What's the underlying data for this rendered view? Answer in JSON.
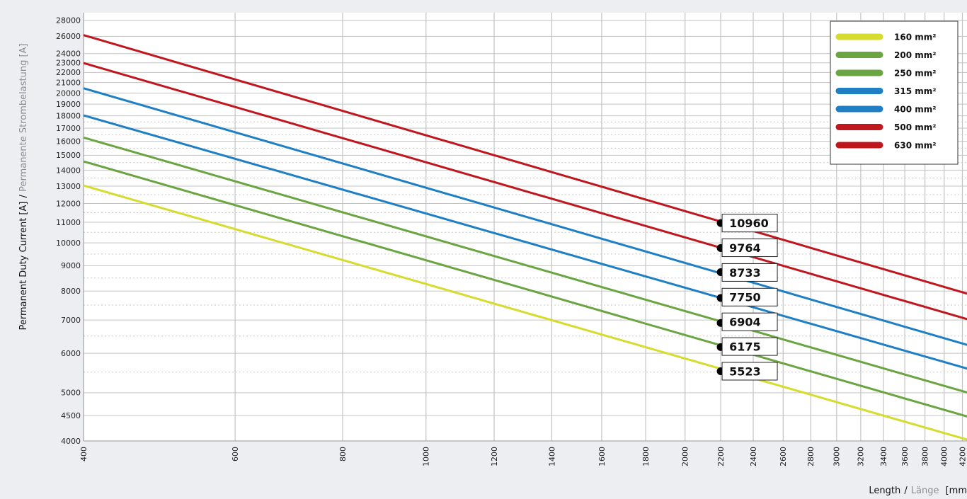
{
  "chart_data": {
    "type": "line",
    "x_scale": "log",
    "y_scale": "log",
    "xlabel": "Length",
    "xlabel_de": "Länge",
    "x_unit": "[mm",
    "ylabel": "Permanent Duty Current [A]",
    "ylabel_de": "Permanente Strombelastung [A]",
    "xlim": [
      400,
      4350
    ],
    "ylim": [
      4000,
      29000
    ],
    "x_ticks": [
      400,
      600,
      800,
      1000,
      1200,
      1400,
      1600,
      1800,
      2000,
      2200,
      2400,
      2600,
      2800,
      3000,
      3200,
      3400,
      3600,
      3800,
      4000,
      4200
    ],
    "y_ticks": [
      4000,
      4500,
      5000,
      6000,
      7000,
      8000,
      9000,
      10000,
      11000,
      12000,
      13000,
      14000,
      15000,
      16000,
      17000,
      18000,
      19000,
      20000,
      21000,
      22000,
      23000,
      24000,
      26000,
      28000
    ],
    "y_minor_ticks": [
      5500,
      6500,
      7500,
      8500,
      9500,
      10500,
      11500,
      12500,
      13500,
      14500,
      15500,
      16500,
      17500
    ],
    "grid": true,
    "legend_position": "top-right",
    "series": [
      {
        "name": "160 mm²",
        "color": "#d6dc2e",
        "x": [
          400,
          4350
        ],
        "y": [
          13040,
          3980
        ]
      },
      {
        "name": "200 mm²",
        "color": "#6aa542",
        "x": [
          400,
          4350
        ],
        "y": [
          14580,
          4430
        ]
      },
      {
        "name": "250 mm²",
        "color": "#6aa542",
        "x": [
          400,
          4350
        ],
        "y": [
          16280,
          4950
        ]
      },
      {
        "name": "315 mm²",
        "color": "#1f7fc4",
        "x": [
          400,
          4350
        ],
        "y": [
          18040,
          5530
        ]
      },
      {
        "name": "400 mm²",
        "color": "#1f7fc4",
        "x": [
          400,
          4350
        ],
        "y": [
          20450,
          6170
        ]
      },
      {
        "name": "500 mm²",
        "color": "#c0161e",
        "x": [
          400,
          4350
        ],
        "y": [
          22980,
          6950
        ]
      },
      {
        "name": "630 mm²",
        "color": "#c0161e",
        "x": [
          400,
          4350
        ],
        "y": [
          26150,
          7820
        ]
      }
    ],
    "annotations": [
      {
        "x": 2200,
        "y": 10960,
        "label": "10960"
      },
      {
        "x": 2200,
        "y": 9764,
        "label": "9764"
      },
      {
        "x": 2200,
        "y": 8733,
        "label": "8733"
      },
      {
        "x": 2200,
        "y": 7750,
        "label": "7750"
      },
      {
        "x": 2200,
        "y": 6904,
        "label": "6904"
      },
      {
        "x": 2200,
        "y": 6175,
        "label": "6175"
      },
      {
        "x": 2200,
        "y": 5523,
        "label": "5523"
      }
    ],
    "colors": {
      "background": "#eceef1",
      "plot_background": "#ffffff",
      "grid_major": "#c3c3c3",
      "grid_minor": "#c9c9c9"
    }
  }
}
